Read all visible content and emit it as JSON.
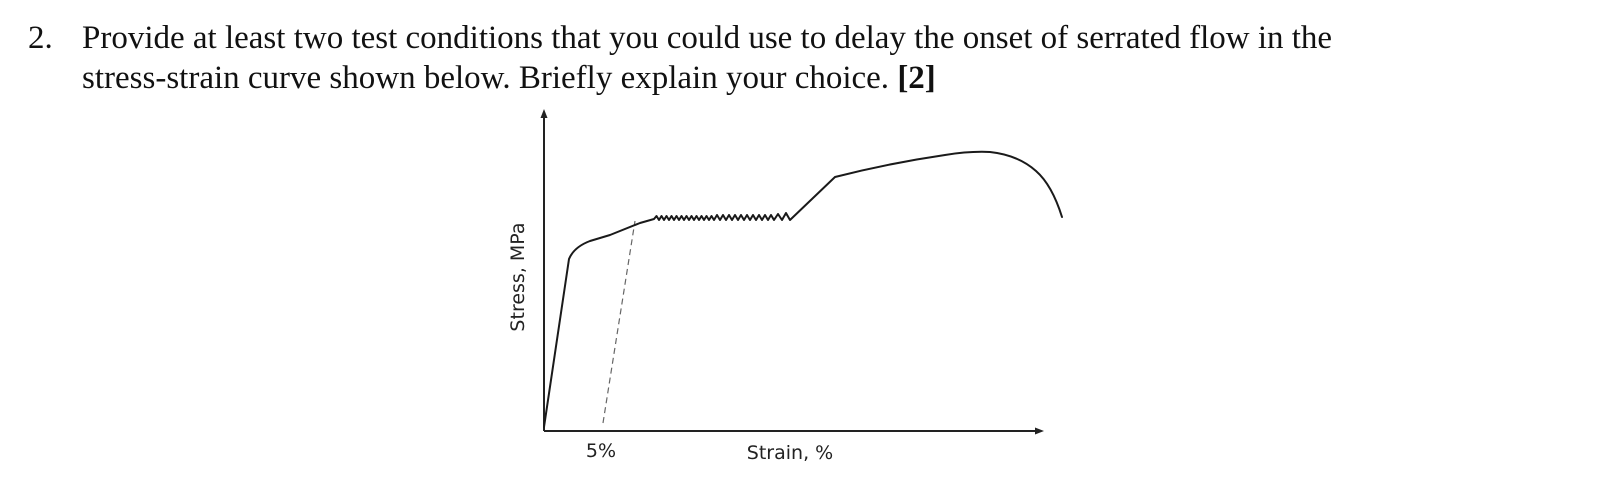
{
  "question": {
    "number": "2.",
    "line1": "Provide at least two test conditions that you could use to delay the onset of serrated flow in the",
    "line2_text": "stress-strain curve shown below. Briefly explain your choice. ",
    "marks": "[2]"
  },
  "figure": {
    "y_axis_label": "Stress, MPa",
    "x_axis_label": "Strain, %",
    "offset_label": "5%"
  }
}
